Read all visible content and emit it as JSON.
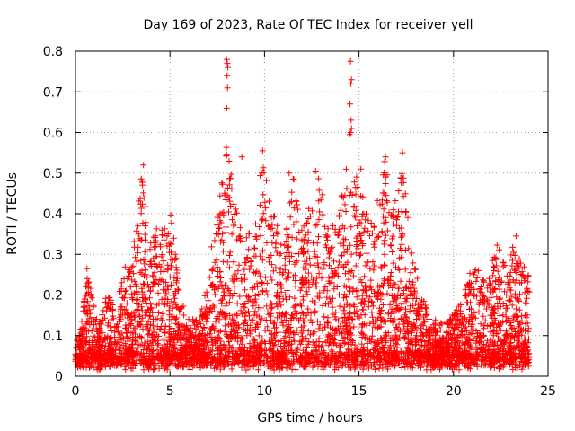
{
  "chart_data": {
    "type": "scatter",
    "title": "Day 169 of 2023, Rate Of TEC Index for receiver yell",
    "xlabel": "GPS time / hours",
    "ylabel": "ROTI / TECUs",
    "xlim": [
      0,
      25
    ],
    "ylim": [
      0,
      0.8
    ],
    "xticks": [
      "0",
      "5",
      "10",
      "15",
      "20",
      "25"
    ],
    "yticks": [
      "0",
      "0.1",
      "0.2",
      "0.3",
      "0.4",
      "0.5",
      "0.6",
      "0.7",
      "0.8"
    ],
    "grid": true,
    "marker": "+",
    "color": "#ff0000",
    "envelope": [
      [
        0.0,
        0.08
      ],
      [
        0.3,
        0.12
      ],
      [
        0.6,
        0.27
      ],
      [
        0.9,
        0.19
      ],
      [
        1.2,
        0.12
      ],
      [
        1.7,
        0.21
      ],
      [
        2.1,
        0.16
      ],
      [
        2.6,
        0.27
      ],
      [
        3.0,
        0.3
      ],
      [
        3.5,
        0.5
      ],
      [
        4.0,
        0.34
      ],
      [
        4.5,
        0.38
      ],
      [
        4.8,
        0.36
      ],
      [
        5.1,
        0.42
      ],
      [
        5.5,
        0.2
      ],
      [
        6.0,
        0.14
      ],
      [
        6.5,
        0.14
      ],
      [
        7.0,
        0.23
      ],
      [
        7.3,
        0.38
      ],
      [
        7.6,
        0.46
      ],
      [
        8.0,
        0.58
      ],
      [
        8.5,
        0.42
      ],
      [
        9.0,
        0.34
      ],
      [
        9.5,
        0.38
      ],
      [
        9.9,
        0.55
      ],
      [
        10.5,
        0.44
      ],
      [
        11.0,
        0.3
      ],
      [
        11.5,
        0.5
      ],
      [
        12.0,
        0.36
      ],
      [
        12.5,
        0.44
      ],
      [
        12.8,
        0.5
      ],
      [
        13.3,
        0.4
      ],
      [
        13.8,
        0.36
      ],
      [
        14.3,
        0.52
      ],
      [
        14.8,
        0.5
      ],
      [
        15.3,
        0.44
      ],
      [
        15.8,
        0.4
      ],
      [
        16.3,
        0.54
      ],
      [
        16.8,
        0.44
      ],
      [
        17.3,
        0.52
      ],
      [
        17.8,
        0.32
      ],
      [
        18.3,
        0.2
      ],
      [
        18.8,
        0.15
      ],
      [
        19.3,
        0.13
      ],
      [
        19.8,
        0.14
      ],
      [
        20.3,
        0.18
      ],
      [
        20.8,
        0.25
      ],
      [
        21.3,
        0.28
      ],
      [
        21.8,
        0.22
      ],
      [
        22.3,
        0.35
      ],
      [
        22.8,
        0.26
      ],
      [
        23.3,
        0.35
      ],
      [
        23.7,
        0.28
      ],
      [
        24.0,
        0.25
      ]
    ],
    "outliers": [
      [
        8.0,
        0.78
      ],
      [
        8.03,
        0.77
      ],
      [
        8.06,
        0.76
      ],
      [
        8.02,
        0.74
      ],
      [
        8.04,
        0.71
      ],
      [
        8.0,
        0.66
      ],
      [
        14.55,
        0.775
      ],
      [
        14.6,
        0.73
      ],
      [
        14.57,
        0.72
      ],
      [
        14.52,
        0.67
      ],
      [
        14.58,
        0.63
      ],
      [
        14.55,
        0.6
      ],
      [
        14.5,
        0.595
      ],
      [
        14.6,
        0.61
      ],
      [
        9.9,
        0.555
      ],
      [
        16.4,
        0.54
      ],
      [
        17.3,
        0.55
      ],
      [
        8.8,
        0.54
      ],
      [
        3.6,
        0.52
      ],
      [
        12.7,
        0.505
      ],
      [
        15.1,
        0.51
      ],
      [
        11.3,
        0.5
      ]
    ]
  }
}
